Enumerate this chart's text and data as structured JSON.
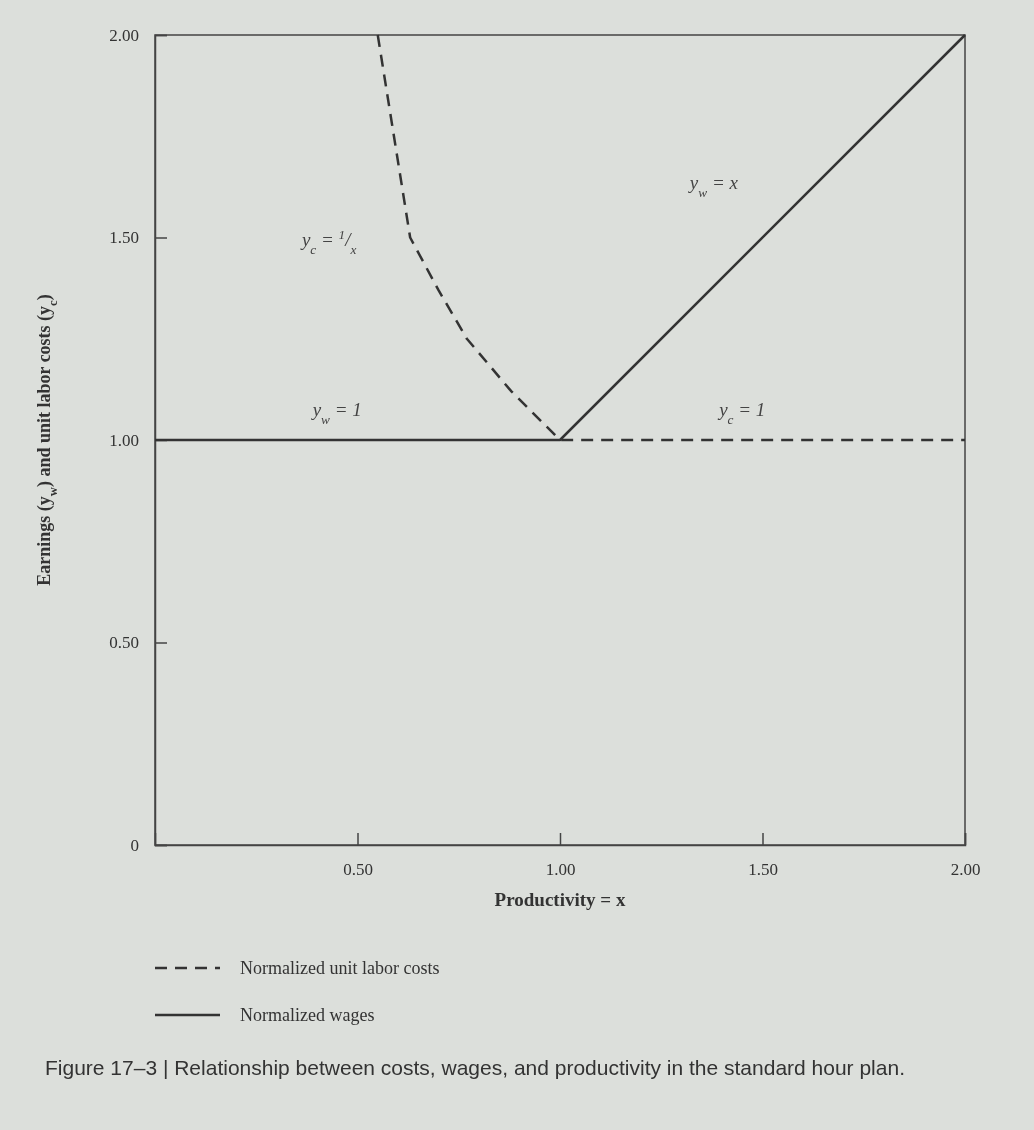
{
  "chart_data": {
    "type": "line",
    "title": "Figure 17–3 | Relationship between costs, wages, and productivity in the standard hour plan.",
    "xlabel": "Productivity = x",
    "ylabel": "Earnings (y$_{w}$) and unit labor costs (y$_{c}$)",
    "xlim": [
      0,
      2
    ],
    "ylim": [
      0,
      2
    ],
    "xticks": [
      {
        "value": 0.5,
        "label": "0.50"
      },
      {
        "value": 1,
        "label": "1.00"
      },
      {
        "value": 1.5,
        "label": "1.50"
      },
      {
        "value": 2,
        "label": "2.00"
      }
    ],
    "yticks": [
      0,
      {
        "value": 0.5,
        "label": "0.50"
      },
      {
        "value": 1,
        "label": "1.00"
      },
      {
        "value": 1.5,
        "label": "1.50"
      },
      {
        "value": 2,
        "label": "2.00"
      }
    ],
    "grid": false,
    "legend": "bottom",
    "marker": "none",
    "series": [
      {
        "name": "Normalized unit labor costs",
        "color": "#333333",
        "line_style": "dashed",
        "x": [
          0.55,
          0.59,
          0.63,
          0.7,
          0.77,
          0.88,
          1,
          2
        ],
        "values": [
          2,
          1.75,
          1.5,
          1.37,
          1.25,
          1.12,
          1,
          1
        ]
      },
      {
        "name": "Normalized wages",
        "color": "#333333",
        "line_style": "solid",
        "x": [
          0,
          1,
          2
        ],
        "values": [
          1,
          1,
          2
        ]
      }
    ],
    "annotations": [
      "y$_{c}$ = $^{1}$/$_{x}$",
      "y$_{w}$ = x",
      "y$_{w}$ = 1",
      "y$_{c}$ = 1"
    ]
  }
}
